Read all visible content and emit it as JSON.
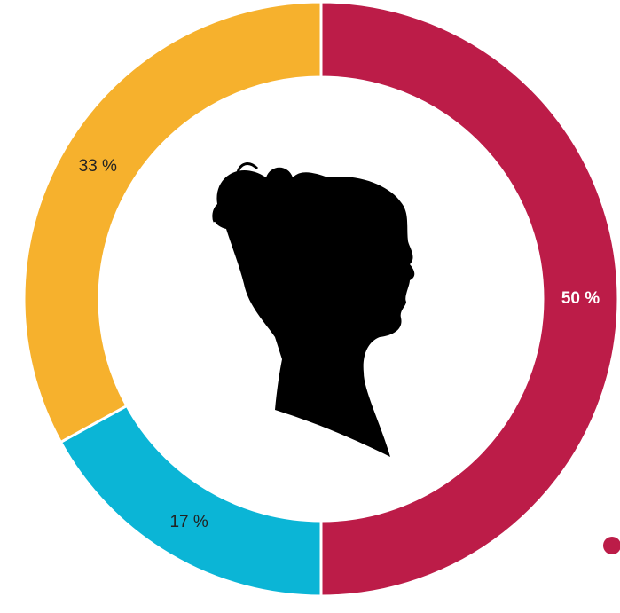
{
  "chart_data": {
    "type": "pie",
    "values": [
      50,
      17,
      33
    ],
    "value_labels": [
      "50 %",
      "17 %",
      "33 %"
    ],
    "colors": [
      "#bc1c48",
      "#0bb5d6",
      "#f6b12d"
    ],
    "label_colors": [
      "#ffffff",
      "#222222",
      "#222222"
    ],
    "donut": true
  }
}
